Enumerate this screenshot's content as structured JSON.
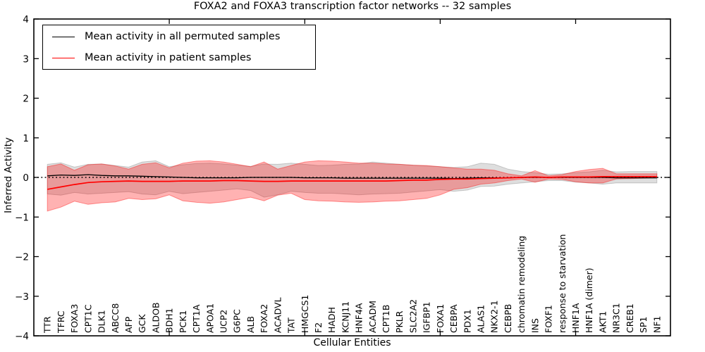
{
  "title": "FOXA2 and FOXA3 transcription factor networks -- 32 samples",
  "legend": [
    {
      "label": "Mean activity in all permuted samples",
      "color": "#000000"
    },
    {
      "label": "Mean activity in patient samples",
      "color": "#ff0000"
    }
  ],
  "chart_data": {
    "type": "line",
    "title": "FOXA2 and FOXA3 transcription factor networks -- 32 samples",
    "xlabel": "Cellular Entities",
    "ylabel": "Inferred Activity",
    "ylim": [
      -4,
      4
    ],
    "yticks": [
      4,
      3,
      2,
      1,
      0,
      -1,
      -2,
      -3,
      -4
    ],
    "x_major_ticks": [
      10,
      20,
      30,
      40
    ],
    "grid": false,
    "legend_position": "upper left",
    "zero_line": {
      "style": "dotted",
      "color": "#000000",
      "y": 0
    },
    "categories": [
      "TTR",
      "TFRC",
      "FOXA3",
      "CPT1C",
      "DLK1",
      "ABCC8",
      "AFP",
      "GCK",
      "ALDOB",
      "BDH1",
      "PCK1",
      "CPT1A",
      "APOA1",
      "UCP2",
      "G6PC",
      "ALB",
      "FOXA2",
      "ACADVL",
      "TAT",
      "HMGCS1",
      "F2",
      "HADH",
      "KCNJ11",
      "HNF4A",
      "ACADM",
      "CPT1B",
      "PKLR",
      "SLC2A2",
      "IGFBP1",
      "FOXA1",
      "CEBPA",
      "PDX1",
      "ALAS1",
      "NKX2-1",
      "CEBPB",
      "chromatin remodeling",
      "INS",
      "FOXF1",
      "response to starvation",
      "HNF1A",
      "HNF1A (dimer)",
      "AKT1",
      "NR3C1",
      "CREB1",
      "SP1",
      "NF1"
    ],
    "series": [
      {
        "name": "Mean activity in all permuted samples",
        "color": "#000000",
        "width": 1.3,
        "values": [
          0.04,
          0.06,
          0.05,
          0.07,
          0.05,
          0.04,
          0.04,
          0.03,
          0.02,
          0.01,
          0.0,
          -0.01,
          -0.01,
          -0.01,
          -0.01,
          0.0,
          0.0,
          0.0,
          0.0,
          -0.01,
          -0.01,
          -0.01,
          -0.02,
          -0.02,
          -0.02,
          -0.02,
          -0.02,
          -0.02,
          -0.02,
          -0.02,
          -0.03,
          -0.02,
          -0.01,
          -0.01,
          -0.01,
          0.0,
          0.0,
          0.0,
          0.0,
          0.0,
          0.0,
          0.0,
          -0.01,
          -0.01,
          -0.01,
          -0.01
        ]
      },
      {
        "name": "Mean activity in patient samples",
        "color": "#ff0000",
        "width": 1.7,
        "values": [
          -0.3,
          -0.24,
          -0.18,
          -0.13,
          -0.11,
          -0.1,
          -0.09,
          -0.1,
          -0.1,
          -0.1,
          -0.09,
          -0.09,
          -0.09,
          -0.08,
          -0.08,
          -0.09,
          -0.1,
          -0.1,
          -0.09,
          -0.09,
          -0.09,
          -0.09,
          -0.09,
          -0.09,
          -0.09,
          -0.09,
          -0.08,
          -0.07,
          -0.07,
          -0.05,
          -0.04,
          -0.04,
          -0.03,
          -0.02,
          -0.01,
          0.0,
          0.01,
          0.0,
          0.01,
          0.01,
          0.01,
          0.02,
          0.02,
          0.02,
          0.02,
          0.02
        ]
      }
    ],
    "bands": [
      {
        "name": "permuted-samples-band",
        "fill": "rgba(0,0,0,0.13)",
        "stroke": "rgba(0,0,0,0.18)",
        "upper": [
          0.33,
          0.37,
          0.26,
          0.33,
          0.34,
          0.3,
          0.26,
          0.39,
          0.42,
          0.27,
          0.32,
          0.35,
          0.36,
          0.34,
          0.31,
          0.28,
          0.34,
          0.33,
          0.36,
          0.33,
          0.3,
          0.31,
          0.33,
          0.34,
          0.39,
          0.36,
          0.33,
          0.31,
          0.29,
          0.27,
          0.25,
          0.27,
          0.36,
          0.33,
          0.21,
          0.15,
          0.12,
          0.08,
          0.09,
          0.12,
          0.14,
          0.18,
          0.14,
          0.15,
          0.15,
          0.15
        ],
        "lower": [
          -0.42,
          -0.45,
          -0.38,
          -0.42,
          -0.4,
          -0.38,
          -0.36,
          -0.42,
          -0.44,
          -0.35,
          -0.41,
          -0.38,
          -0.35,
          -0.32,
          -0.29,
          -0.33,
          -0.5,
          -0.44,
          -0.35,
          -0.38,
          -0.4,
          -0.4,
          -0.42,
          -0.44,
          -0.42,
          -0.41,
          -0.4,
          -0.37,
          -0.34,
          -0.31,
          -0.35,
          -0.32,
          -0.23,
          -0.22,
          -0.17,
          -0.14,
          -0.11,
          -0.08,
          -0.08,
          -0.12,
          -0.14,
          -0.17,
          -0.14,
          -0.14,
          -0.14,
          -0.14
        ]
      },
      {
        "name": "patient-samples-band",
        "fill": "rgba(255,0,0,0.30)",
        "stroke": "rgba(255,0,0,0.40)",
        "upper": [
          0.27,
          0.34,
          0.18,
          0.32,
          0.34,
          0.29,
          0.21,
          0.33,
          0.37,
          0.24,
          0.36,
          0.41,
          0.42,
          0.39,
          0.33,
          0.27,
          0.39,
          0.21,
          0.3,
          0.39,
          0.42,
          0.41,
          0.39,
          0.36,
          0.36,
          0.34,
          0.33,
          0.31,
          0.3,
          0.27,
          0.24,
          0.21,
          0.21,
          0.18,
          0.09,
          0.04,
          0.17,
          0.04,
          0.07,
          0.15,
          0.2,
          0.23,
          0.09,
          0.09,
          0.09,
          0.09
        ],
        "lower": [
          -0.85,
          -0.75,
          -0.6,
          -0.68,
          -0.64,
          -0.62,
          -0.53,
          -0.56,
          -0.54,
          -0.44,
          -0.59,
          -0.63,
          -0.65,
          -0.62,
          -0.56,
          -0.5,
          -0.59,
          -0.45,
          -0.4,
          -0.56,
          -0.59,
          -0.6,
          -0.62,
          -0.63,
          -0.62,
          -0.6,
          -0.59,
          -0.56,
          -0.53,
          -0.44,
          -0.3,
          -0.26,
          -0.17,
          -0.14,
          -0.08,
          -0.04,
          -0.12,
          -0.04,
          -0.05,
          -0.11,
          -0.14,
          -0.14,
          -0.04,
          -0.03,
          -0.02,
          -0.01
        ]
      }
    ]
  }
}
